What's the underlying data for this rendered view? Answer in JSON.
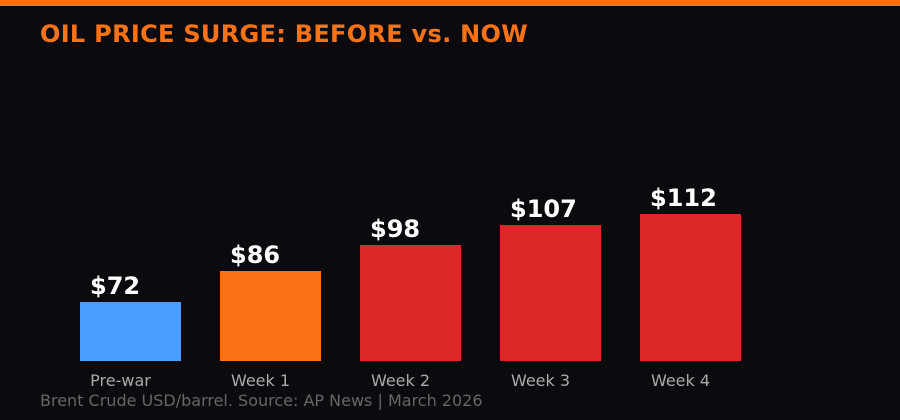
{
  "title": "OIL PRICE SURGE: BEFORE vs. NOW",
  "footer": "Brent Crude USD/barrel. Source: AP News | March 2026",
  "colors": {
    "accent": "#f97316",
    "background": "#0b0b0f",
    "prewar": "#4a9eff",
    "week1": "#f97316",
    "surge": "#dc2828"
  },
  "bars": [
    {
      "label": "Pre-war",
      "value_label": "$72",
      "value": 72,
      "color": "#4a9eff"
    },
    {
      "label": "Week 1",
      "value_label": "$86",
      "value": 86,
      "color": "#f97316"
    },
    {
      "label": "Week 2",
      "value_label": "$98",
      "value": 98,
      "color": "#dc2828"
    },
    {
      "label": "Week 3",
      "value_label": "$107",
      "value": 107,
      "color": "#dc2828"
    },
    {
      "label": "Week 4",
      "value_label": "$112",
      "value": 112,
      "color": "#dc2828"
    }
  ],
  "chart_data": {
    "type": "bar",
    "title": "OIL PRICE SURGE: BEFORE vs. NOW",
    "subtitle": "Brent Crude USD/barrel. Source: AP News | March 2026",
    "categories": [
      "Pre-war",
      "Week 1",
      "Week 2",
      "Week 3",
      "Week 4"
    ],
    "values": [
      72,
      86,
      98,
      107,
      112
    ],
    "xlabel": "",
    "ylabel": "USD/barrel",
    "grid": false,
    "legend": "none"
  }
}
